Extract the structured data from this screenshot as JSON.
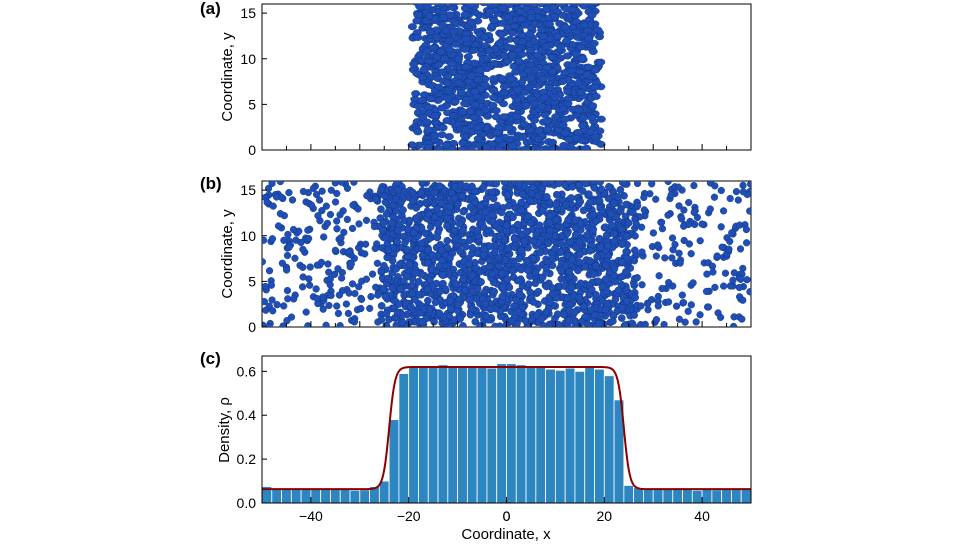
{
  "chart_data": [
    {
      "type": "scatter",
      "panel_label": "(a)",
      "xlabel": "",
      "ylabel": "Coordinate, y",
      "xlim": [
        -50,
        50
      ],
      "ylim": [
        0,
        16
      ],
      "y_ticks": [
        0,
        5,
        10,
        15
      ],
      "x_ticks_labeled": false,
      "slab_x_range": [
        -19,
        19
      ],
      "marker_color": "#1f4fb5",
      "grid": false
    },
    {
      "type": "scatter",
      "panel_label": "(b)",
      "xlabel": "",
      "ylabel": "Coordinate, y",
      "xlim": [
        -50,
        50
      ],
      "ylim": [
        0,
        16
      ],
      "y_ticks": [
        0,
        5,
        10,
        15
      ],
      "x_ticks_labeled": false,
      "dense_x_range": [
        -26,
        26
      ],
      "marker_color": "#1f4fb5",
      "grid": false
    },
    {
      "type": "bar",
      "panel_label": "(c)",
      "xlabel": "Coordinate, x",
      "ylabel": "Density, ρ",
      "xlim": [
        -50,
        50
      ],
      "ylim": [
        0,
        0.67
      ],
      "x_ticks": [
        -40,
        -20,
        0,
        20,
        40
      ],
      "y_ticks": [
        0.0,
        0.2,
        0.4,
        0.6
      ],
      "y_tick_labels": [
        "0.0",
        "0.2",
        "0.4",
        "0.6"
      ],
      "bin_width": 2,
      "bin_centers": [
        -49,
        -47,
        -45,
        -43,
        -41,
        -39,
        -37,
        -35,
        -33,
        -31,
        -29,
        -27,
        -25,
        -23,
        -21,
        -19,
        -17,
        -15,
        -13,
        -11,
        -9,
        -7,
        -5,
        -3,
        -1,
        1,
        3,
        5,
        7,
        9,
        11,
        13,
        15,
        17,
        19,
        21,
        23,
        25,
        27,
        29,
        31,
        33,
        35,
        37,
        39,
        41,
        43,
        45,
        47,
        49
      ],
      "values": [
        0.075,
        0.062,
        0.065,
        0.065,
        0.066,
        0.063,
        0.067,
        0.067,
        0.062,
        0.058,
        0.06,
        0.075,
        0.1,
        0.38,
        0.59,
        0.62,
        0.62,
        0.62,
        0.63,
        0.62,
        0.625,
        0.62,
        0.625,
        0.615,
        0.635,
        0.635,
        0.63,
        0.625,
        0.62,
        0.61,
        0.605,
        0.615,
        0.6,
        0.62,
        0.61,
        0.58,
        0.47,
        0.08,
        0.07,
        0.063,
        0.063,
        0.062,
        0.065,
        0.065,
        0.058,
        0.064,
        0.06,
        0.062,
        0.063,
        0.063
      ],
      "fit_curve": {
        "rho_low": 0.063,
        "rho_high": 0.62,
        "center": 0,
        "half_width": 24,
        "interface_width": 1.2
      },
      "bar_color": "#2e86c1",
      "curve_color": "#8b0000",
      "grid": false
    }
  ]
}
